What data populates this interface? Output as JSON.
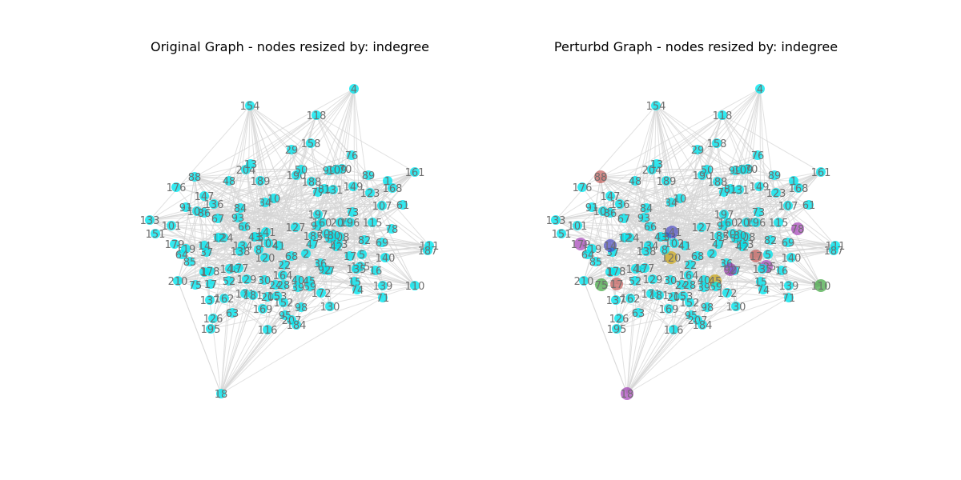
{
  "figure": {
    "panels": [
      {
        "title": "Original Graph - nodes resized by: indegree",
        "node_color": "#00e5ee",
        "highlighted": []
      },
      {
        "title": "Perturbd Graph - nodes resized by: indegree",
        "node_color": "#00e5ee",
        "highlighted": [
          {
            "id": "88",
            "color": "#c0504d"
          },
          {
            "id": "179",
            "color": "#9b30b0"
          },
          {
            "id": "78",
            "color": "#9b30b0"
          },
          {
            "id": "75",
            "color": "#2e9e2e"
          },
          {
            "id": "110",
            "color": "#2e9e2e"
          },
          {
            "id": "18",
            "color": "#9b30b0"
          },
          {
            "id": "121",
            "color": "#9b30b0"
          },
          {
            "id": "120",
            "color": "#c8a000"
          },
          {
            "id": "45",
            "color": "#c8a000"
          },
          {
            "id": "96",
            "color": "#c0504d"
          },
          {
            "id": "17",
            "color": "#c0504d"
          },
          {
            "id": "87",
            "color": "#333333"
          },
          {
            "id": "125",
            "color": "#9b30b0"
          },
          {
            "id": "141",
            "color": "#4040c0"
          },
          {
            "id": "92",
            "color": "#9b30b0"
          },
          {
            "id": "14",
            "color": "#4040c0"
          }
        ]
      }
    ],
    "node_labels": [
      "4",
      "154",
      "118",
      "158",
      "29",
      "76",
      "170",
      "99",
      "89",
      "1",
      "161",
      "168",
      "88",
      "176",
      "147",
      "48",
      "204",
      "13",
      "189",
      "190",
      "50",
      "188",
      "77",
      "131",
      "149",
      "123",
      "107",
      "61",
      "91",
      "106",
      "86",
      "136",
      "67",
      "124",
      "12",
      "133",
      "151",
      "101",
      "179",
      "119",
      "64",
      "37",
      "85",
      "1",
      "178",
      "148",
      "177",
      "210",
      "75",
      "17",
      "52",
      "129",
      "30",
      "164",
      "24",
      "28",
      "39",
      "40",
      "45",
      "59",
      "2",
      "36",
      "27",
      "125",
      "16",
      "110",
      "139",
      "71",
      "137",
      "162",
      "171",
      "181",
      "20",
      "153",
      "152",
      "98",
      "169",
      "95",
      "207",
      "184",
      "126",
      "195",
      "63",
      "116",
      "18",
      "143",
      "17",
      "140",
      "111",
      "187",
      "78",
      "69",
      "115",
      "208",
      "200",
      "197",
      "205",
      "185",
      "97",
      "73",
      "55",
      "120",
      "82",
      "160",
      "42",
      "22",
      "68",
      "196",
      "41",
      "47",
      "93",
      "183",
      "84",
      "66",
      "8",
      "141",
      "127",
      "109",
      "81",
      "5",
      "14",
      "134",
      "102",
      "138",
      "92",
      "130",
      "172",
      "15",
      "74",
      "135",
      "80",
      "10",
      "34",
      "43"
    ]
  }
}
